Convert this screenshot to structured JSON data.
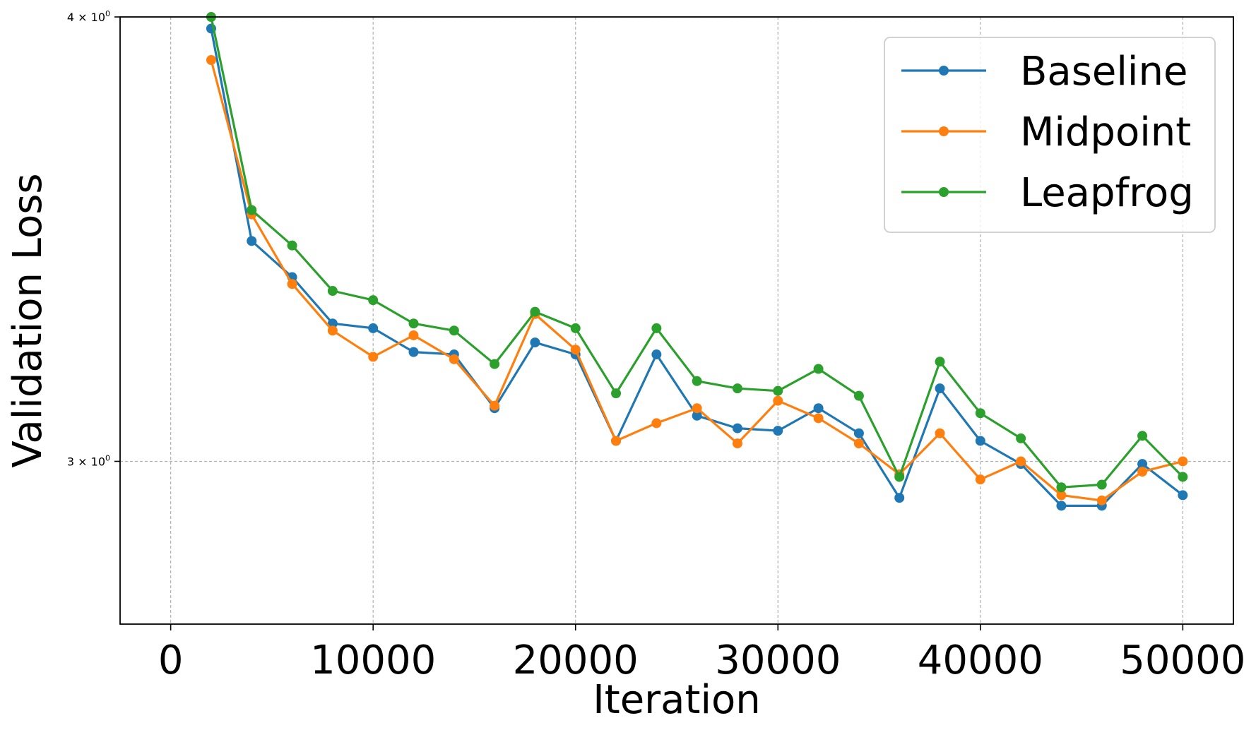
{
  "chart_data": {
    "type": "line",
    "xlabel": "Iteration",
    "ylabel": "Validation Loss",
    "yscale": "log",
    "grid": true,
    "legend_position": "top-right",
    "xlim": [
      -2500,
      52500
    ],
    "ylim": [
      2.7,
      4.0
    ],
    "xticks": [
      0,
      10000,
      20000,
      30000,
      40000,
      50000
    ],
    "xtick_labels": [
      "0",
      "10000",
      "20000",
      "30000",
      "40000",
      "50000"
    ],
    "yticks": [
      3.0,
      4.0
    ],
    "ytick_labels": [
      {
        "base": "3 × 10",
        "exp": "0"
      },
      {
        "base": "4 × 10",
        "exp": "0"
      }
    ],
    "x": [
      2000,
      4000,
      6000,
      8000,
      10000,
      12000,
      14000,
      16000,
      18000,
      20000,
      22000,
      24000,
      26000,
      28000,
      30000,
      32000,
      34000,
      36000,
      38000,
      40000,
      42000,
      44000,
      46000,
      48000,
      50000
    ],
    "series": [
      {
        "name": "Baseline",
        "color": "#1f77b4",
        "values": [
          3.97,
          3.46,
          3.38,
          3.28,
          3.27,
          3.22,
          3.215,
          3.105,
          3.24,
          3.215,
          3.04,
          3.215,
          3.09,
          3.065,
          3.06,
          3.105,
          3.055,
          2.93,
          3.145,
          3.04,
          2.995,
          2.915,
          2.915,
          2.995,
          2.935
        ],
        "marker": "circle"
      },
      {
        "name": "Midpoint",
        "color": "#ff7f0e",
        "values": [
          3.89,
          3.52,
          3.365,
          3.265,
          3.21,
          3.255,
          3.205,
          3.11,
          3.3,
          3.225,
          3.04,
          3.075,
          3.105,
          3.035,
          3.12,
          3.085,
          3.035,
          2.975,
          3.055,
          2.965,
          3.0,
          2.935,
          2.925,
          2.98,
          3.0
        ],
        "marker": "circle"
      },
      {
        "name": "Leapfrog",
        "color": "#2ca02c",
        "values": [
          4.01,
          3.53,
          3.45,
          3.35,
          3.33,
          3.28,
          3.265,
          3.195,
          3.305,
          3.27,
          3.135,
          3.27,
          3.16,
          3.145,
          3.14,
          3.185,
          3.13,
          2.97,
          3.2,
          3.095,
          3.045,
          2.95,
          2.955,
          3.05,
          2.97
        ],
        "marker": "circle"
      }
    ]
  }
}
